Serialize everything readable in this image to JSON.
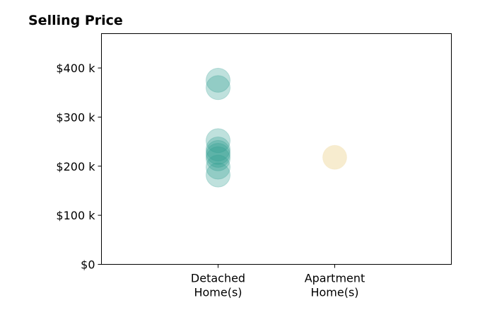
{
  "chart_data": {
    "type": "scatter",
    "title": "Selling Price",
    "xlabel": "",
    "ylabel": "",
    "categories": [
      [
        "Detached",
        "Home(s)"
      ],
      [
        "Apartment",
        "Home(s)"
      ]
    ],
    "xlim": [
      -1,
      2
    ],
    "ylim": [
      0,
      470000
    ],
    "y_ticks": [
      {
        "value": 0,
        "label": "$0"
      },
      {
        "value": 100000,
        "label": "$100 k"
      },
      {
        "value": 200000,
        "label": "$200 k"
      },
      {
        "value": 300000,
        "label": "$300 k"
      },
      {
        "value": 400000,
        "label": "$400 k"
      }
    ],
    "grid": false,
    "series": [
      {
        "category_index": 0,
        "color": "#2a9d8f",
        "values": [
          375000,
          360000,
          252000,
          235000,
          228000,
          222000,
          215000,
          198000,
          182000
        ]
      },
      {
        "category_index": 1,
        "color": "#f1dca7",
        "values": [
          218000
        ]
      }
    ]
  }
}
